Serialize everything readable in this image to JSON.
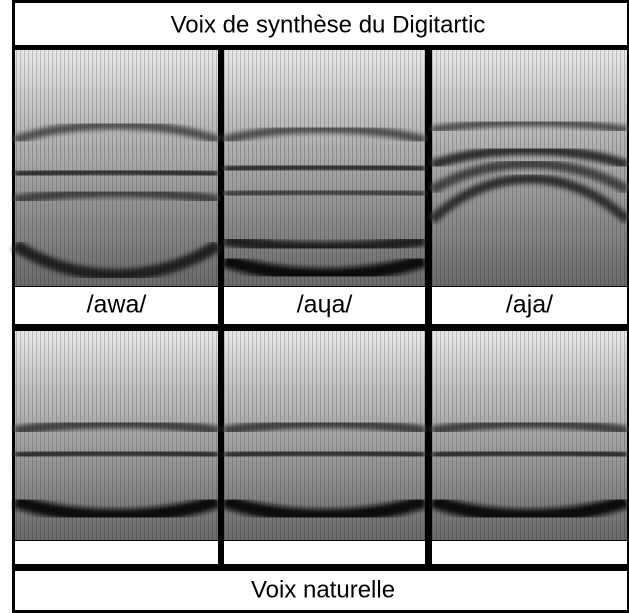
{
  "header": {
    "title": "Voix de synthèse du Digitartic"
  },
  "labels": [
    "/awa/",
    "/aɥa/",
    "/aja/"
  ],
  "footer": {
    "title": "Voix naturelle"
  }
}
